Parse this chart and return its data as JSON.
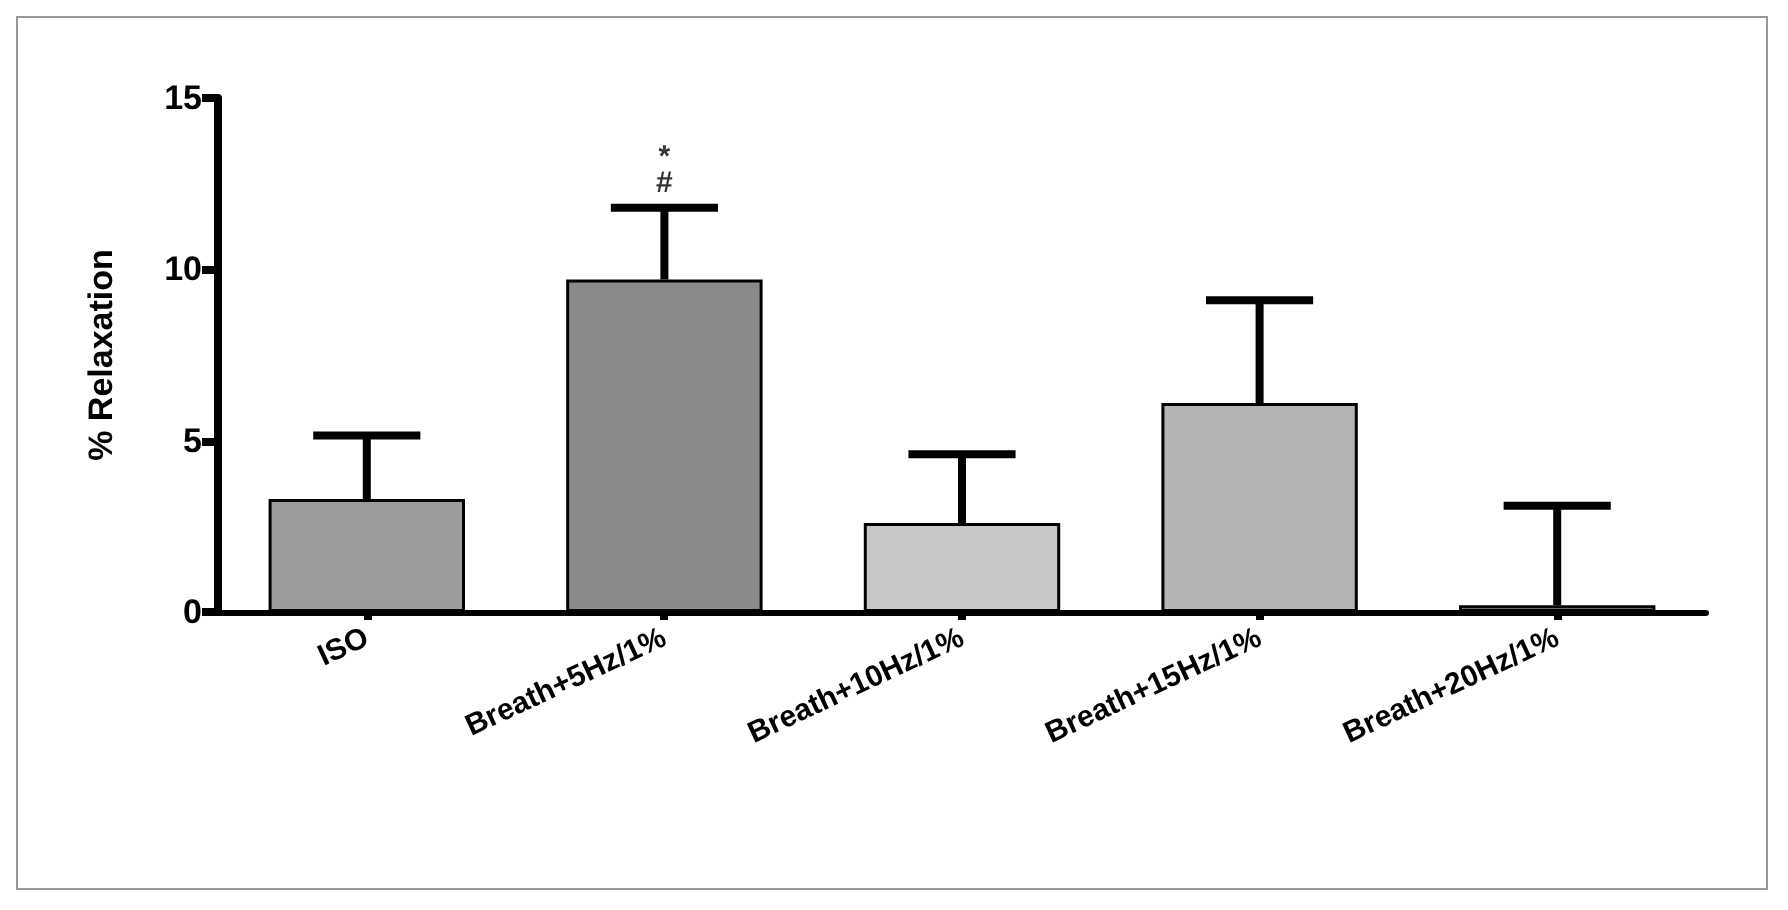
{
  "chart_data": {
    "type": "bar",
    "ylabel": "% Relaxation",
    "categories": [
      "ISO",
      "Breath+5Hz/1%",
      "Breath+10Hz/1%",
      "Breath+15Hz/1%",
      "Breath+20Hz/1%"
    ],
    "values": [
      3.3,
      9.7,
      2.6,
      6.1,
      0.2
    ],
    "errors": [
      [
        3.3,
        5.15
      ],
      [
        9.7,
        11.8
      ],
      [
        2.6,
        4.6
      ],
      [
        6.1,
        9.1
      ],
      [
        0.2,
        3.1
      ]
    ],
    "colors": [
      "#9c9c9c",
      "#8a8a8a",
      "#c8c8c8",
      "#b4b4b4",
      "#909090"
    ],
    "ylim": [
      0,
      15
    ],
    "yticks": [
      0,
      5,
      10,
      15
    ],
    "grid": false,
    "annotations": [
      "*",
      "#"
    ]
  }
}
